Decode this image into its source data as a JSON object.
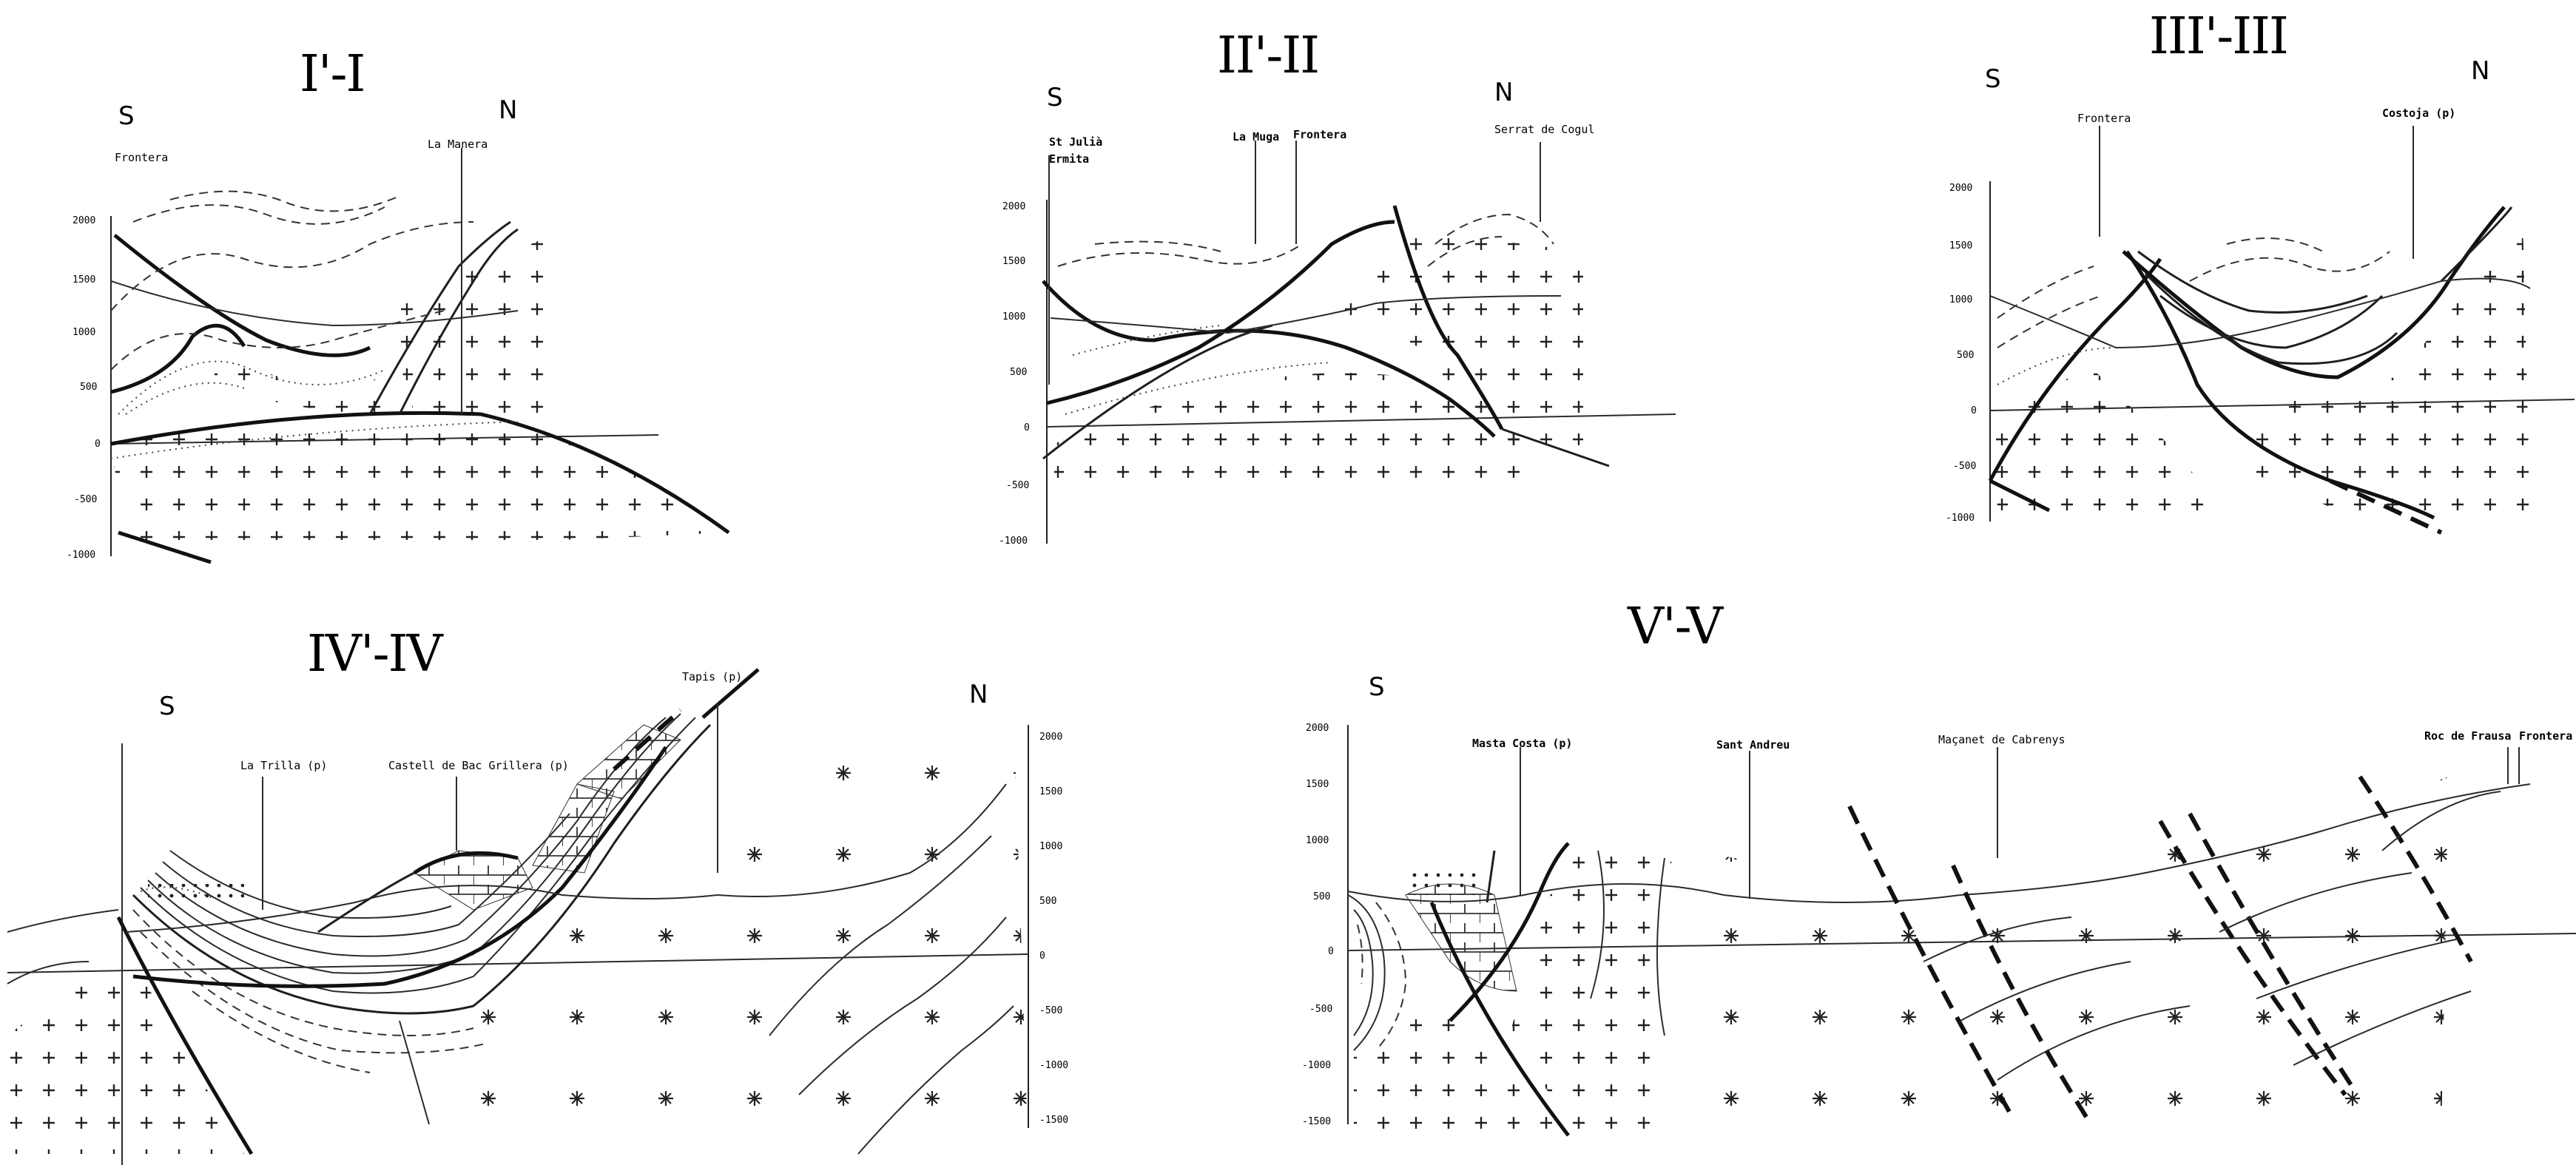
{
  "sections": [
    {
      "id": "s1",
      "title": "I'-I",
      "south_label": "S",
      "north_label": "N",
      "places": [
        "Frontera",
        "La Manera"
      ],
      "elevation_ticks": [
        "2000",
        "1500",
        "1000",
        "500",
        "0",
        "-500",
        "-1000"
      ]
    },
    {
      "id": "s2",
      "title": "II'-II",
      "south_label": "S",
      "north_label": "N",
      "places": [
        "St Julià",
        "Ermita",
        "La Muga",
        "Frontera",
        "Serrat de Cogul"
      ],
      "elevation_ticks": [
        "2000",
        "1500",
        "1000",
        "500",
        "0",
        "-500",
        "-1000"
      ]
    },
    {
      "id": "s3",
      "title": "III'-III",
      "south_label": "S",
      "north_label": "N",
      "places": [
        "Frontera",
        "Costoja (p)"
      ],
      "elevation_ticks": [
        "2000",
        "1500",
        "1000",
        "500",
        "0",
        "-500",
        "-1000"
      ]
    },
    {
      "id": "s4",
      "title": "IV'-IV",
      "south_label": "S",
      "north_label": "N",
      "places": [
        "La Trilla (p)",
        "Castell de Bac Grillera (p)",
        "Tapis (p)"
      ],
      "elevation_ticks": [
        "2000",
        "1500",
        "1000",
        "500",
        "0",
        "-500",
        "-1000",
        "-1500"
      ]
    },
    {
      "id": "s5",
      "title": "V'-V",
      "south_label": "S",
      "places": [
        "Masta Costa (p)",
        "Sant Andreu",
        "Maçanet de Cabrenys",
        "Roc de Frausa",
        "Frontera"
      ],
      "elevation_ticks": [
        "2000",
        "1500",
        "1000",
        "500",
        "0",
        "-500",
        "-1000",
        "-1500"
      ]
    }
  ]
}
